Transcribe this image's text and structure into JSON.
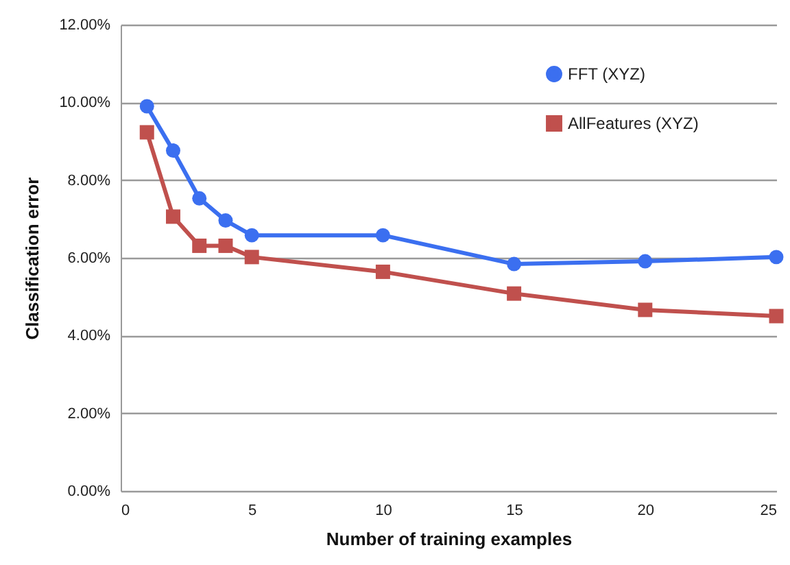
{
  "chart_data": {
    "type": "line",
    "xlabel": "Number of training examples",
    "ylabel": "Classification error",
    "x": [
      1,
      2,
      3,
      4,
      5,
      10,
      15,
      20,
      25
    ],
    "series": [
      {
        "name": "FFT (XYZ)",
        "color": "#3b6ff0",
        "marker": "circle",
        "values": [
          9.9,
          8.76,
          7.53,
          6.96,
          6.58,
          6.58,
          5.84,
          5.91,
          6.02
        ]
      },
      {
        "name": "AllFeatures (XYZ)",
        "color": "#c0504d",
        "marker": "square",
        "values": [
          9.23,
          7.06,
          6.31,
          6.31,
          6.02,
          5.64,
          5.08,
          4.66,
          4.5
        ]
      }
    ],
    "xlim": [
      0,
      25
    ],
    "xticks": [
      0,
      5,
      10,
      15,
      20,
      25
    ],
    "ylim": [
      0,
      12
    ],
    "yticks": [
      {
        "value": 0,
        "label": "0.00%"
      },
      {
        "value": 2,
        "label": "2.00%"
      },
      {
        "value": 4,
        "label": "4.00%"
      },
      {
        "value": 6,
        "label": "6.00%"
      },
      {
        "value": 8,
        "label": "8.00%"
      },
      {
        "value": 10,
        "label": "10.00%"
      },
      {
        "value": 12,
        "label": "12.00%"
      }
    ],
    "grid": "y",
    "legend": "top right",
    "line_style": "solid"
  }
}
